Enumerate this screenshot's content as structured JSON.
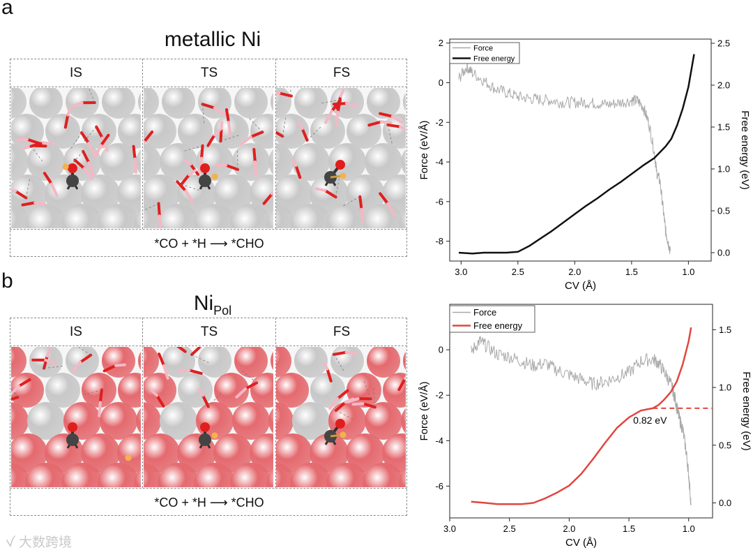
{
  "panels": {
    "a": {
      "letter": "a",
      "title": "metallic Ni",
      "states": [
        "IS",
        "TS",
        "FS"
      ],
      "reaction": "*CO + *H ⟶ *CHO"
    },
    "b": {
      "letter": "b",
      "title_main": "Ni",
      "title_sub": "Pol",
      "states": [
        "IS",
        "TS",
        "FS"
      ],
      "reaction": "*CO + *H ⟶ *CHO"
    }
  },
  "colors": {
    "ni_atom": "#c8c8c8",
    "ni_pol_atom": "#e46a6f",
    "oxygen": "#e01e1e",
    "hydrogen": "#f4b8c4",
    "carbon": "#444444",
    "adsorbed_h": "#f3b24a",
    "force_line": "#a8a8a8",
    "free_energy_a": "#111111",
    "free_energy_b": "#e0463e"
  },
  "watermark": "大数跨境",
  "chart_data": [
    {
      "type": "line",
      "panel": "a",
      "xlabel": "CV (Å)",
      "ylabel_left": "Force (eV/Å)",
      "ylabel_right": "Free energy (eV)",
      "xlim": [
        3.1,
        0.8
      ],
      "ylim_left": [
        -9.0,
        2.2
      ],
      "ylim_right": [
        -0.1,
        2.55
      ],
      "x_ticks": [
        "3.0",
        "2.5",
        "2.0",
        "1.5",
        "1.0"
      ],
      "y_ticks_left": [
        "2",
        "0",
        "-2",
        "-4",
        "-6",
        "-8"
      ],
      "y_ticks_right": [
        "2.5",
        "2.0",
        "1.5",
        "1.0",
        "0.5",
        "0.0"
      ],
      "legend_position": "top-left",
      "series": [
        {
          "name": "Force",
          "axis": "left",
          "noise": 0.3,
          "x": [
            3.02,
            2.95,
            2.9,
            2.8,
            2.7,
            2.6,
            2.5,
            2.4,
            2.3,
            2.2,
            2.1,
            2.0,
            1.9,
            1.8,
            1.7,
            1.6,
            1.5,
            1.45,
            1.4,
            1.35,
            1.3,
            1.28,
            1.25,
            1.22,
            1.2,
            1.18,
            1.16
          ],
          "y": [
            0.2,
            0.8,
            0.5,
            0.1,
            -0.3,
            -0.5,
            -0.7,
            -0.8,
            -0.85,
            -0.9,
            -1.0,
            -1.0,
            -1.0,
            -1.05,
            -1.1,
            -1.0,
            -0.9,
            -0.9,
            -1.2,
            -2.0,
            -3.5,
            -4.5,
            -5.0,
            -6.5,
            -7.5,
            -8.0,
            -8.5
          ]
        },
        {
          "name": "Free energy",
          "axis": "right",
          "x": [
            3.02,
            2.9,
            2.8,
            2.7,
            2.6,
            2.5,
            2.4,
            2.3,
            2.2,
            2.1,
            2.0,
            1.9,
            1.8,
            1.7,
            1.6,
            1.5,
            1.4,
            1.3,
            1.2,
            1.15,
            1.1,
            1.05,
            1.0,
            0.95
          ],
          "y": [
            0.0,
            -0.01,
            0.0,
            0.0,
            0.0,
            0.01,
            0.08,
            0.17,
            0.26,
            0.36,
            0.46,
            0.56,
            0.65,
            0.75,
            0.84,
            0.94,
            1.04,
            1.13,
            1.27,
            1.36,
            1.52,
            1.72,
            1.98,
            2.37
          ]
        }
      ]
    },
    {
      "type": "line",
      "panel": "b",
      "xlabel": "CV (Å)",
      "ylabel_left": "Force (eV/Å)",
      "ylabel_right": "Free energy (eV)",
      "xlim": [
        3.0,
        0.8
      ],
      "ylim_left": [
        -7.4,
        2.0
      ],
      "ylim_right": [
        -0.13,
        1.72
      ],
      "x_ticks": [
        "3.0",
        "2.5",
        "2.0",
        "1.5",
        "1.0"
      ],
      "y_ticks_left": [
        "0",
        "-2",
        "-4",
        "-6"
      ],
      "y_ticks_right": [
        "1.5",
        "1.0",
        "0.5",
        "0.0"
      ],
      "legend_position": "top-left",
      "annotation": {
        "text": "0.82 eV",
        "value": 0.82
      },
      "series": [
        {
          "name": "Force",
          "axis": "left",
          "noise": 0.3,
          "x": [
            2.82,
            2.75,
            2.7,
            2.6,
            2.5,
            2.4,
            2.3,
            2.2,
            2.1,
            2.0,
            1.9,
            1.8,
            1.7,
            1.6,
            1.5,
            1.4,
            1.3,
            1.25,
            1.2,
            1.15,
            1.12,
            1.1,
            1.08,
            1.05,
            1.02,
            1.0,
            0.98
          ],
          "y": [
            -0.1,
            0.4,
            0.2,
            -0.2,
            -0.3,
            -0.5,
            -0.7,
            -0.6,
            -0.9,
            -1.1,
            -1.3,
            -1.5,
            -1.4,
            -1.2,
            -1.0,
            -0.5,
            -0.4,
            -0.6,
            -1.0,
            -1.5,
            -2.0,
            -2.5,
            -3.0,
            -3.5,
            -4.5,
            -5.5,
            -6.8
          ]
        },
        {
          "name": "Free energy",
          "axis": "right",
          "x": [
            2.82,
            2.7,
            2.6,
            2.5,
            2.4,
            2.3,
            2.2,
            2.1,
            2.0,
            1.9,
            1.8,
            1.7,
            1.6,
            1.5,
            1.4,
            1.35,
            1.3,
            1.25,
            1.2,
            1.15,
            1.1,
            1.05,
            1.0,
            0.98
          ],
          "y": [
            0.01,
            0.0,
            -0.01,
            -0.01,
            -0.01,
            0.0,
            0.04,
            0.09,
            0.15,
            0.25,
            0.38,
            0.52,
            0.65,
            0.74,
            0.8,
            0.81,
            0.82,
            0.85,
            0.9,
            0.96,
            1.05,
            1.2,
            1.4,
            1.52
          ]
        }
      ]
    }
  ]
}
